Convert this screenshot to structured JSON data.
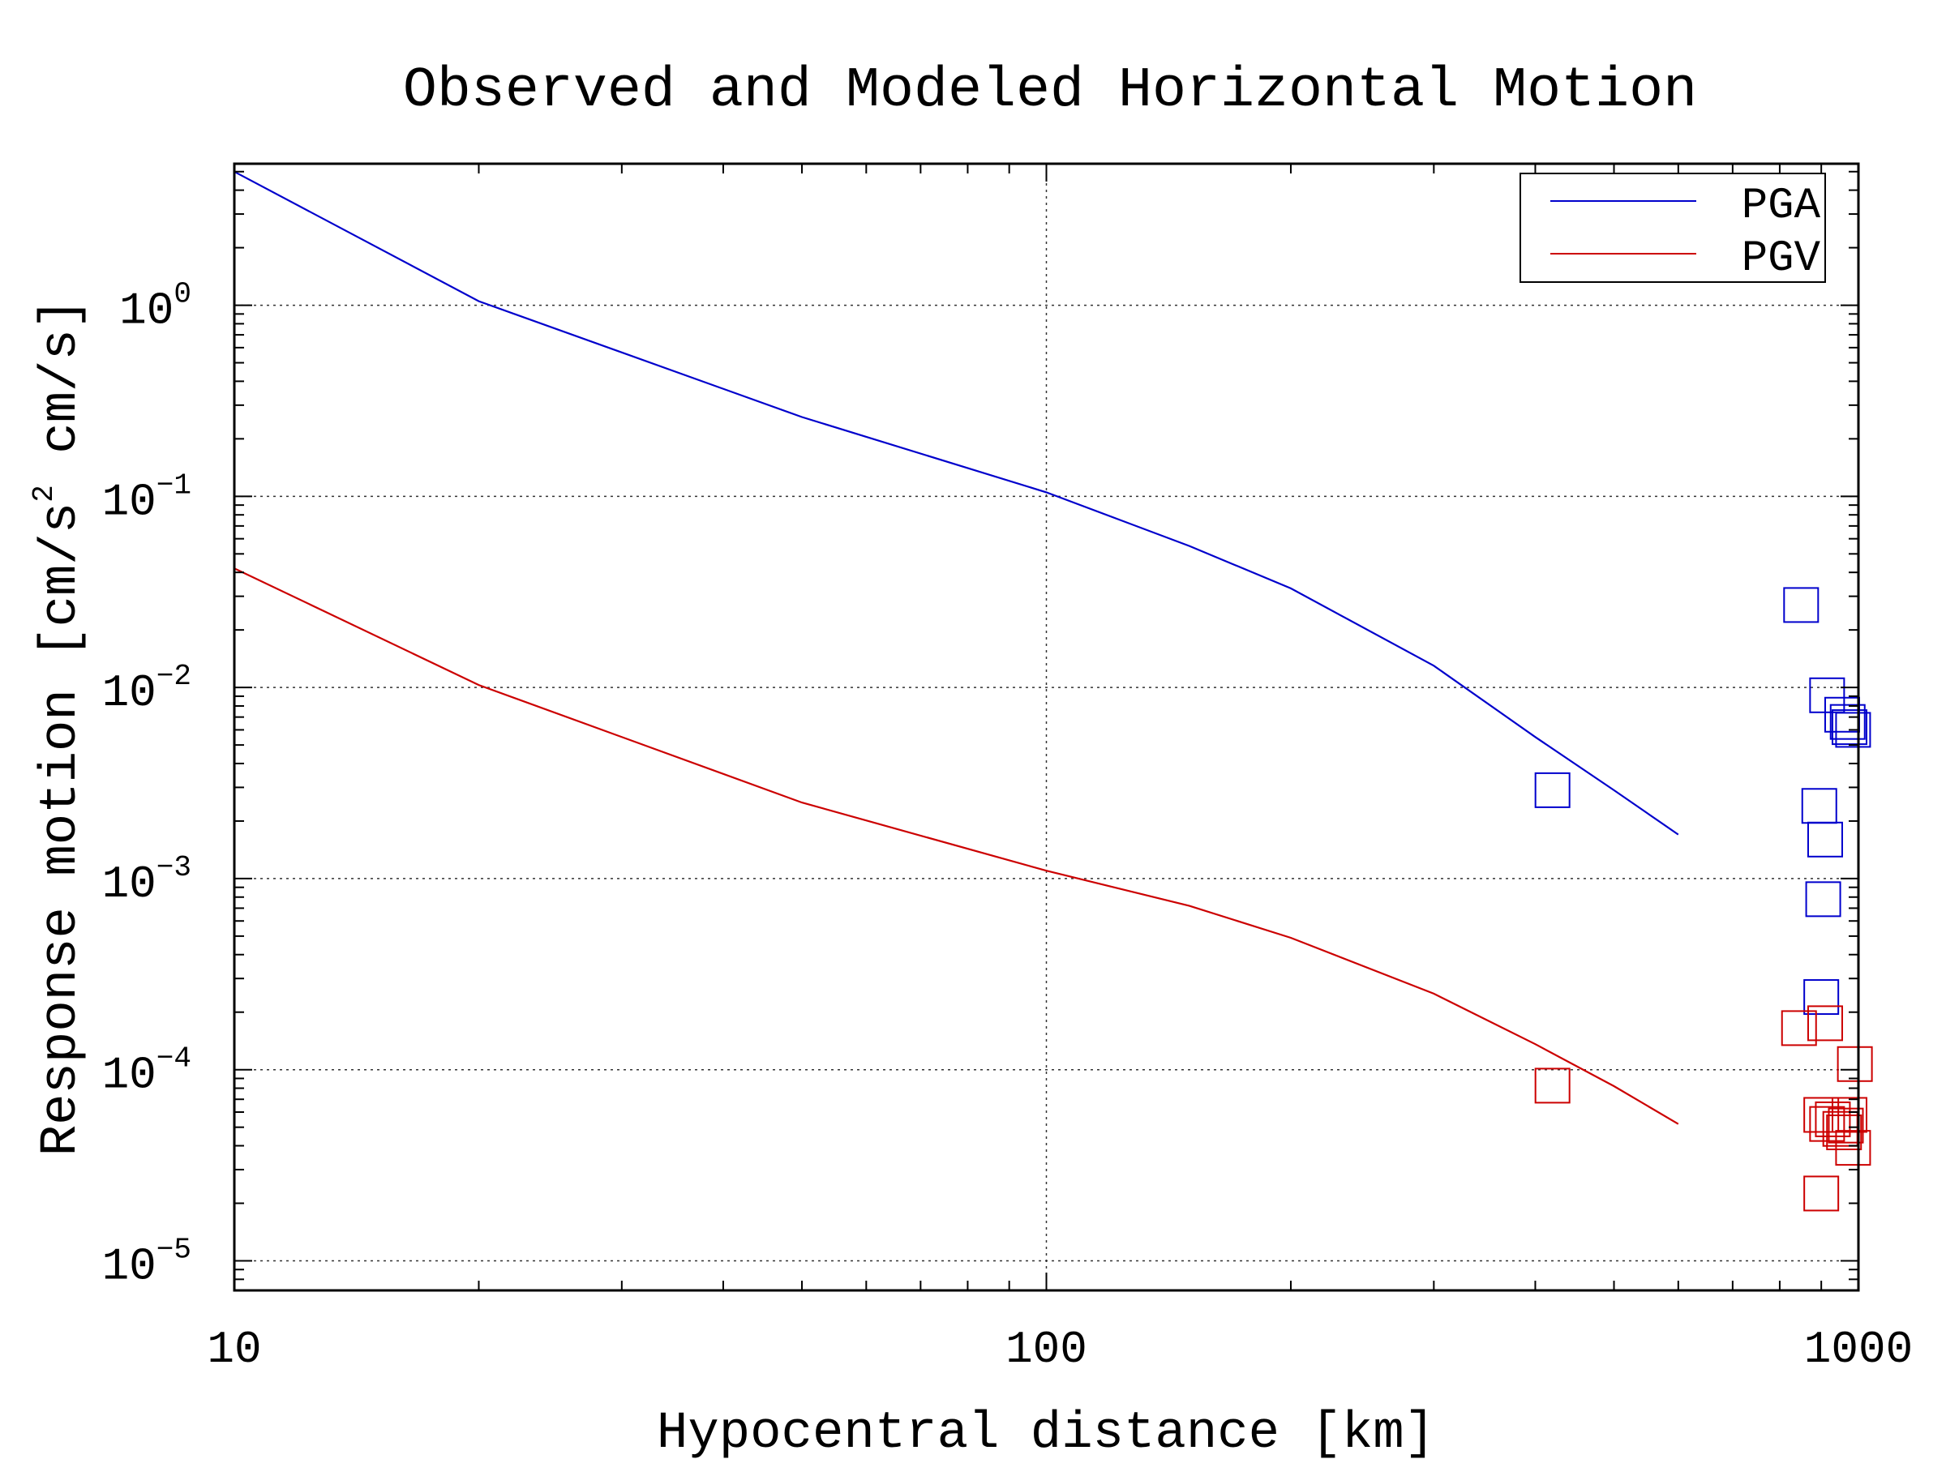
{
  "chart_data": {
    "type": "line",
    "title": "Observed and Modeled Horizontal Motion",
    "xlabel": "Hypocentral distance [km]",
    "ylabel_parts": {
      "pre": "Response motion [cm/s",
      "sup": "2",
      "post": " cm/s]"
    },
    "xscale": "log",
    "yscale": "log",
    "xlim": [
      10,
      1000
    ],
    "ylim": [
      7e-06,
      5.5
    ],
    "grid": true,
    "legend_position": "top-right",
    "x_ticks": [
      {
        "value": 10,
        "label": "10"
      },
      {
        "value": 100,
        "label": "100"
      },
      {
        "value": 1000,
        "label": "1000"
      }
    ],
    "y_ticks": [
      {
        "value": 1,
        "base": "10",
        "exp": "0"
      },
      {
        "value": 0.1,
        "base": "10",
        "exp": "−1"
      },
      {
        "value": 0.01,
        "base": "10",
        "exp": "−2"
      },
      {
        "value": 0.001,
        "base": "10",
        "exp": "−3"
      },
      {
        "value": 0.0001,
        "base": "10",
        "exp": "−4"
      },
      {
        "value": 1e-05,
        "base": "10",
        "exp": "−5"
      }
    ],
    "series": [
      {
        "name": "PGA",
        "color": "#0000cc",
        "kind": "line",
        "x": [
          10,
          20,
          50,
          100,
          150,
          200,
          300,
          400,
          500,
          600
        ],
        "y": [
          5.0,
          1.05,
          0.26,
          0.105,
          0.055,
          0.033,
          0.013,
          0.0055,
          0.0029,
          0.0017
        ]
      },
      {
        "name": "PGV",
        "color": "#cc0000",
        "kind": "line",
        "x": [
          10,
          20,
          50,
          100,
          150,
          200,
          300,
          400,
          500,
          600
        ],
        "y": [
          0.042,
          0.0103,
          0.0025,
          0.0011,
          0.00072,
          0.00049,
          0.00025,
          0.000136,
          8.2e-05,
          5.2e-05
        ]
      },
      {
        "name": "PGA",
        "color": "#0000cc",
        "kind": "markers",
        "x": [
          420,
          850,
          915,
          955,
          970,
          975,
          985,
          895,
          910,
          905,
          900
        ],
        "y": [
          0.0029,
          0.027,
          0.0091,
          0.0072,
          0.0066,
          0.0062,
          0.006,
          0.0024,
          0.0016,
          0.00078,
          0.00024
        ]
      },
      {
        "name": "PGV",
        "color": "#cc0000",
        "kind": "markers",
        "x": [
          420,
          845,
          910,
          990,
          975,
          930,
          900,
          915,
          950,
          960,
          965,
          985,
          900
        ],
        "y": [
          8.25e-05,
          0.000165,
          0.000175,
          0.000107,
          5.8e-05,
          5.5e-05,
          5.8e-05,
          5.2e-05,
          4.9e-05,
          4.7e-05,
          5.1e-05,
          3.9e-05,
          2.25e-05
        ]
      }
    ],
    "legend": [
      {
        "label": "PGA",
        "color": "#0000cc"
      },
      {
        "label": "PGV",
        "color": "#cc0000"
      }
    ]
  }
}
